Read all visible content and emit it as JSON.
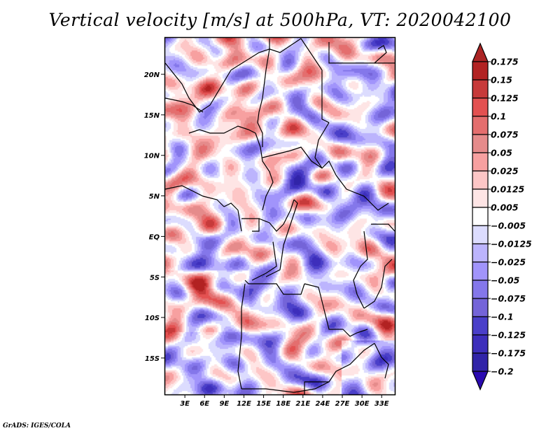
{
  "chart_data": {
    "type": "heatmap",
    "title": "Vertical velocity [m/s] at 500hPa, VT: 2020042100",
    "variable": "Vertical velocity",
    "units": "m/s",
    "level": "500hPa",
    "valid_time": "2020042100",
    "xlabel": "",
    "ylabel": "",
    "x_range_deg": [
      0,
      35
    ],
    "y_range_deg": [
      -19.5,
      24.5
    ],
    "x_ticks": [
      {
        "value": 3,
        "label": "3E"
      },
      {
        "value": 6,
        "label": "6E"
      },
      {
        "value": 9,
        "label": "9E"
      },
      {
        "value": 12,
        "label": "12E"
      },
      {
        "value": 15,
        "label": "15E"
      },
      {
        "value": 18,
        "label": "18E"
      },
      {
        "value": 21,
        "label": "21E"
      },
      {
        "value": 24,
        "label": "24E"
      },
      {
        "value": 27,
        "label": "27E"
      },
      {
        "value": 30,
        "label": "30E"
      },
      {
        "value": 33,
        "label": "33E"
      }
    ],
    "y_ticks": [
      {
        "value": 20,
        "label": "20N"
      },
      {
        "value": 15,
        "label": "15N"
      },
      {
        "value": 10,
        "label": "10N"
      },
      {
        "value": 5,
        "label": "5N"
      },
      {
        "value": 0,
        "label": "EQ"
      },
      {
        "value": -5,
        "label": "5S"
      },
      {
        "value": -10,
        "label": "10S"
      },
      {
        "value": -15,
        "label": "15S"
      }
    ],
    "colorbar": {
      "orientation": "vertical",
      "placement": "right",
      "levels": [
        {
          "label": "0.175",
          "color": "#b22222"
        },
        {
          "label": "0.15",
          "color": "#c73a3a"
        },
        {
          "label": "0.125",
          "color": "#e35151"
        },
        {
          "label": "0.1",
          "color": "#e46e6e"
        },
        {
          "label": "0.075",
          "color": "#e58b8b"
        },
        {
          "label": "0.05",
          "color": "#f7a0a0"
        },
        {
          "label": "0.025",
          "color": "#fdc6c6"
        },
        {
          "label": "0.0125",
          "color": "#fee5e5"
        },
        {
          "label": "0.005",
          "color": "#ffffff"
        },
        {
          "label": "-0.005",
          "color": "#dcdcfe"
        },
        {
          "label": "-0.0125",
          "color": "#bcb4fd"
        },
        {
          "label": "-0.025",
          "color": "#a194fb"
        },
        {
          "label": "-0.05",
          "color": "#8477ea"
        },
        {
          "label": "-0.075",
          "color": "#7464d8"
        },
        {
          "label": "-0.1",
          "color": "#4a3fc9"
        },
        {
          "label": "-0.125",
          "color": "#3d2ebb"
        },
        {
          "label": "-0.175",
          "color": "#3124a8"
        },
        {
          "label": "-0.2",
          "color": ""
        }
      ],
      "top_arrow_color": "#ab2424",
      "bottom_arrow_color": "#2a0ab0"
    }
  },
  "footer": {
    "credit": "GrADS: IGES/COLA"
  }
}
